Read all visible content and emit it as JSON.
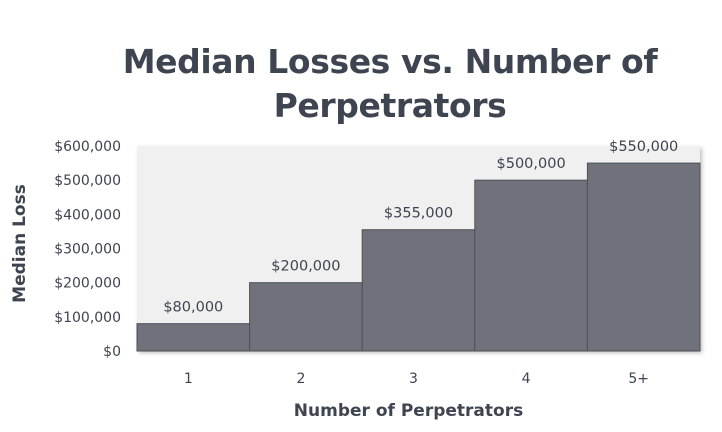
{
  "chart_data": {
    "type": "bar",
    "title": "Median Losses vs. Number of Perpetrators",
    "title_lines": [
      "Median Losses vs. Number of",
      "Perpetrators"
    ],
    "xlabel": "Number of Perpetrators",
    "ylabel": "Median Loss",
    "categories": [
      "1",
      "2",
      "3",
      "4",
      "5+"
    ],
    "values": [
      80000,
      200000,
      355000,
      500000,
      550000
    ],
    "data_labels": [
      "$80,000",
      "$200,000",
      "$355,000",
      "$500,000",
      "$550,000"
    ],
    "y_ticks": [
      0,
      100000,
      200000,
      300000,
      400000,
      500000,
      600000
    ],
    "y_tick_labels": [
      "$0",
      "$100,000",
      "$200,000",
      "$300,000",
      "$400,000",
      "$500,000",
      "$600,000"
    ],
    "ylim": [
      0,
      600000
    ],
    "grid": false,
    "legend": "none",
    "bar_color": "#6f727b",
    "plot_background": "#f0f0f0",
    "text_color": "#3e4450"
  }
}
